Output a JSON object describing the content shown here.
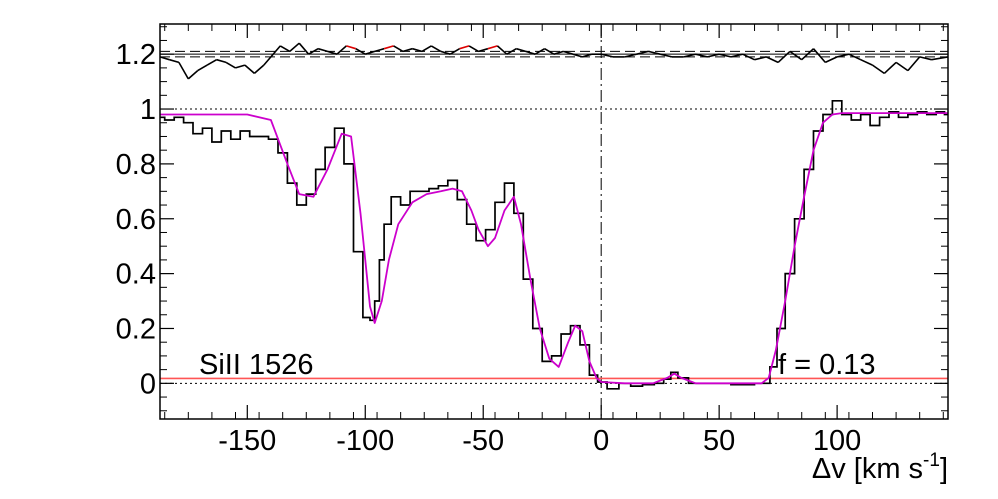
{
  "chart_data": {
    "type": "line",
    "xlabel": "Δv [km s",
    "xlabel_sup": "-1",
    "xlabel_tail": "]",
    "ylabel": "",
    "xlim": [
      -187,
      147
    ],
    "ylim": [
      -0.13,
      1.31
    ],
    "grid": false,
    "x_ticks": [
      -150,
      -100,
      -50,
      0,
      50,
      100
    ],
    "x_tick_labels": [
      "-150",
      "-100",
      "-50",
      "0",
      "50",
      "100"
    ],
    "y_ticks": [
      0,
      0.2,
      0.4,
      0.6,
      0.8,
      1,
      1.2
    ],
    "y_tick_labels": [
      "0",
      "0.2",
      "0.4",
      "0.6",
      "0.8",
      "1",
      "1.2"
    ],
    "annotations": {
      "ion_label": "SiII 1526",
      "fraction_label": "f = 0.13"
    },
    "reference_lines": {
      "continuum": 1.0,
      "zero": 0.0,
      "velocity_zero": 0,
      "residual_center": 1.2,
      "residual_band": [
        1.19,
        1.21
      ]
    },
    "colors": {
      "data": "#000000",
      "model": "#cc00cc",
      "error": "#ff5555",
      "residual_flagged": "#dd0000"
    },
    "series": [
      {
        "style": "step",
        "x": [
          -187,
          -183,
          -179,
          -175,
          -171,
          -167,
          -163,
          -159,
          -155,
          -151,
          -147,
          -143,
          -139,
          -135,
          -131,
          -127,
          -123,
          -119,
          -115,
          -111,
          -107,
          -103,
          -99,
          -97,
          -95,
          -93,
          -91,
          -87,
          -83,
          -79,
          -75,
          -71,
          -67,
          -63,
          -59,
          -55,
          -51,
          -47,
          -43,
          -39,
          -35,
          -31,
          -27,
          -23,
          -19,
          -15,
          -11,
          -7,
          -3,
          0,
          5,
          10,
          15,
          20,
          25,
          28,
          31,
          34,
          40,
          50,
          60,
          70,
          73,
          76,
          80,
          84,
          88,
          92,
          96,
          100,
          104,
          108,
          112,
          116,
          120,
          124,
          128,
          132,
          136,
          140,
          144,
          147
        ],
        "y": [
          0.97,
          0.96,
          0.97,
          0.95,
          0.91,
          0.93,
          0.88,
          0.92,
          0.89,
          0.92,
          0.9,
          0.9,
          0.89,
          0.84,
          0.73,
          0.65,
          0.69,
          0.78,
          0.86,
          0.93,
          0.8,
          0.48,
          0.24,
          0.23,
          0.3,
          0.45,
          0.58,
          0.68,
          0.65,
          0.7,
          0.7,
          0.71,
          0.72,
          0.74,
          0.67,
          0.58,
          0.52,
          0.56,
          0.66,
          0.73,
          0.62,
          0.38,
          0.2,
          0.08,
          0.1,
          0.18,
          0.21,
          0.14,
          0.03,
          0.005,
          -0.02,
          0.0,
          -0.01,
          -0.005,
          0.0,
          0.015,
          0.04,
          0.02,
          0.0,
          0.0,
          -0.005,
          0.0,
          0.06,
          0.2,
          0.4,
          0.6,
          0.78,
          0.92,
          0.98,
          1.03,
          0.98,
          0.96,
          0.98,
          0.94,
          0.97,
          0.99,
          0.97,
          0.98,
          0.99,
          0.98,
          0.99,
          0.98
        ]
      },
      {
        "style": "line",
        "x": [
          -187,
          -150,
          -140,
          -133,
          -128,
          -122,
          -116,
          -110,
          -106,
          -102,
          -98,
          -96,
          -93,
          -90,
          -86,
          -80,
          -74,
          -68,
          -63,
          -59,
          -55,
          -52,
          -48,
          -45,
          -41,
          -37,
          -34,
          -30,
          -26,
          -22,
          -18,
          -14,
          -11,
          -8,
          -5,
          -2,
          0,
          10,
          22,
          28,
          31,
          34,
          40,
          55,
          68,
          71,
          74,
          78,
          82,
          86,
          90,
          94,
          98,
          102,
          110,
          147
        ],
        "y": [
          0.98,
          0.98,
          0.96,
          0.8,
          0.69,
          0.68,
          0.78,
          0.91,
          0.9,
          0.62,
          0.28,
          0.22,
          0.3,
          0.45,
          0.58,
          0.66,
          0.69,
          0.7,
          0.71,
          0.7,
          0.63,
          0.56,
          0.5,
          0.53,
          0.63,
          0.68,
          0.58,
          0.38,
          0.2,
          0.09,
          0.06,
          0.15,
          0.21,
          0.19,
          0.08,
          0.02,
          0.005,
          0.0,
          0.0,
          0.02,
          0.035,
          0.02,
          0.0,
          0.0,
          0.0,
          0.02,
          0.12,
          0.3,
          0.5,
          0.68,
          0.85,
          0.95,
          0.98,
          0.985,
          0.985,
          0.985
        ]
      },
      {
        "style": "line",
        "x": [
          -187,
          147
        ],
        "y": [
          0.018,
          0.018
        ]
      },
      {
        "style": "line",
        "x": [
          -187,
          -183,
          -179,
          -175,
          -171,
          -167,
          -163,
          -159,
          -155,
          -151,
          -147,
          -143,
          -140,
          -136,
          -132,
          -128,
          -124,
          -120,
          -116,
          -112,
          -108,
          -104,
          -100,
          -96,
          -92,
          -88,
          -84,
          -80,
          -76,
          -72,
          -68,
          -64,
          -60,
          -56,
          -52,
          -48,
          -44,
          -40,
          -36,
          -32,
          -28,
          -24,
          -20,
          -16,
          -12,
          -8,
          -4,
          0,
          5,
          10,
          15,
          20,
          25,
          30,
          35,
          40,
          45,
          50,
          55,
          60,
          65,
          70,
          75,
          80,
          85,
          90,
          95,
          100,
          105,
          110,
          115,
          120,
          125,
          130,
          135,
          140,
          147
        ],
        "y": [
          1.19,
          1.18,
          1.17,
          1.11,
          1.14,
          1.16,
          1.18,
          1.17,
          1.15,
          1.16,
          1.13,
          1.16,
          1.19,
          1.23,
          1.21,
          1.24,
          1.2,
          1.22,
          1.21,
          1.2,
          1.23,
          1.22,
          1.2,
          1.21,
          1.22,
          1.23,
          1.21,
          1.22,
          1.21,
          1.23,
          1.21,
          1.2,
          1.22,
          1.23,
          1.21,
          1.22,
          1.23,
          1.2,
          1.22,
          1.21,
          1.2,
          1.22,
          1.2,
          1.21,
          1.2,
          1.19,
          1.2,
          1.2,
          1.19,
          1.19,
          1.2,
          1.21,
          1.2,
          1.19,
          1.19,
          1.2,
          1.19,
          1.2,
          1.19,
          1.2,
          1.18,
          1.19,
          1.17,
          1.21,
          1.18,
          1.22,
          1.17,
          1.19,
          1.2,
          1.18,
          1.16,
          1.13,
          1.17,
          1.14,
          1.19,
          1.18,
          1.19
        ]
      }
    ]
  }
}
